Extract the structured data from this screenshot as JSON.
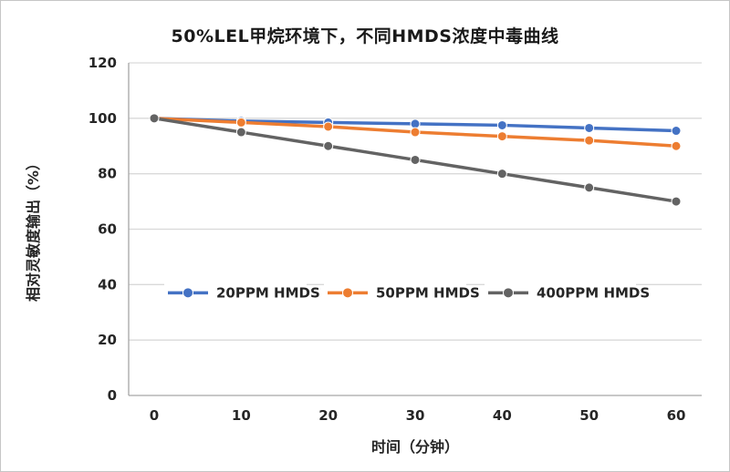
{
  "chart_data": {
    "type": "line",
    "title": "50%LEL甲烷环境下，不同HMDS浓度中毒曲线",
    "xlabel": "时间（分钟）",
    "ylabel": "相对灵敏度输出（%）",
    "x": [
      0,
      10,
      20,
      30,
      40,
      50,
      60
    ],
    "series": [
      {
        "name": "20PPM HMDS",
        "color": "#4472C4",
        "values": [
          100,
          99,
          98.5,
          98,
          97.5,
          96.5,
          95.5
        ]
      },
      {
        "name": "50PPM HMDS",
        "color": "#ED7D31",
        "values": [
          100,
          98.5,
          97,
          95,
          93.5,
          92,
          90
        ]
      },
      {
        "name": "400PPM HMDS",
        "color": "#636363",
        "values": [
          100,
          95,
          90,
          85,
          80,
          75,
          70
        ]
      }
    ],
    "ylim": [
      0,
      120
    ],
    "ytick_step": 20,
    "grid": "horizontal",
    "legend_position": "inside, on 40% gridline"
  }
}
